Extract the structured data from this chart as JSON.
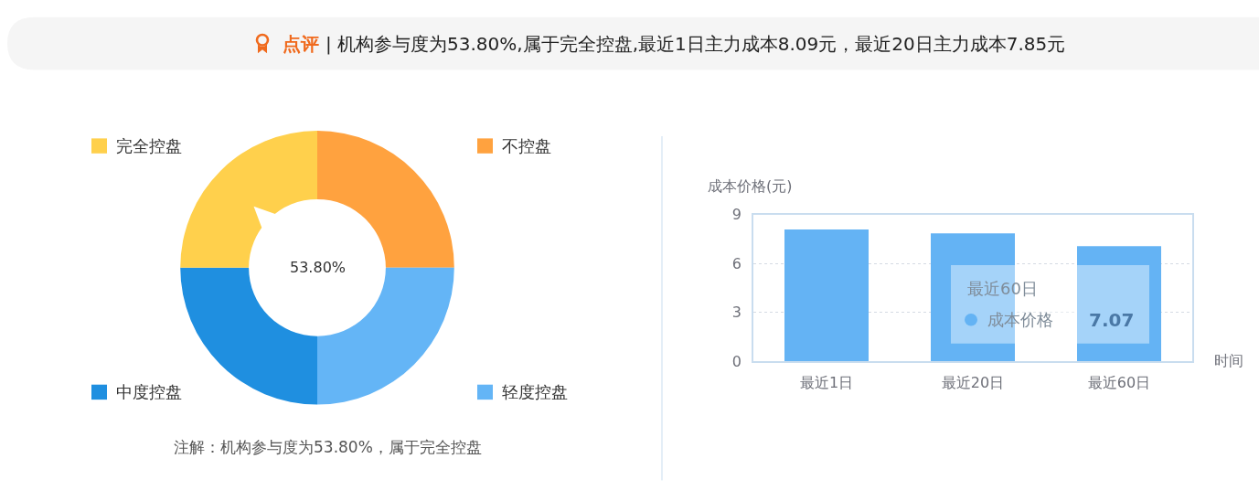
{
  "chart_data": [
    {
      "type": "other",
      "title": "点评 | 机构参与度为53.80%,属于完全控盘,最近1日主力成本8.09元，最近20日主力成本7.85元"
    },
    {
      "type": "donut",
      "categories": [
        "不控盘",
        "轻度控盘",
        "中度控盘",
        "完全控盘"
      ],
      "values": [
        25,
        25,
        25,
        25
      ],
      "colors": [
        "#ffa23f",
        "#64b5f6",
        "#1f8fe0",
        "#ffd04c"
      ],
      "legend": "center",
      "annotations": [
        "53.80%",
        "注解：机构参与度为53.80%，属于完全控盘"
      ]
    },
    {
      "type": "bar",
      "categories": [
        "最近1日",
        "最近20日",
        "最近60日"
      ],
      "series": [
        {
          "name": "成本价格",
          "color": "#64b3f4",
          "values": [
            8.09,
            7.85,
            7.07
          ]
        }
      ],
      "ylabel": "成本价格(元)",
      "xlabel": "时间",
      "ylim": [
        0,
        9
      ],
      "yticks": [
        0,
        3,
        6,
        9
      ],
      "grid": "y",
      "annotations": [
        "最近60日",
        "7.07"
      ]
    }
  ]
}
